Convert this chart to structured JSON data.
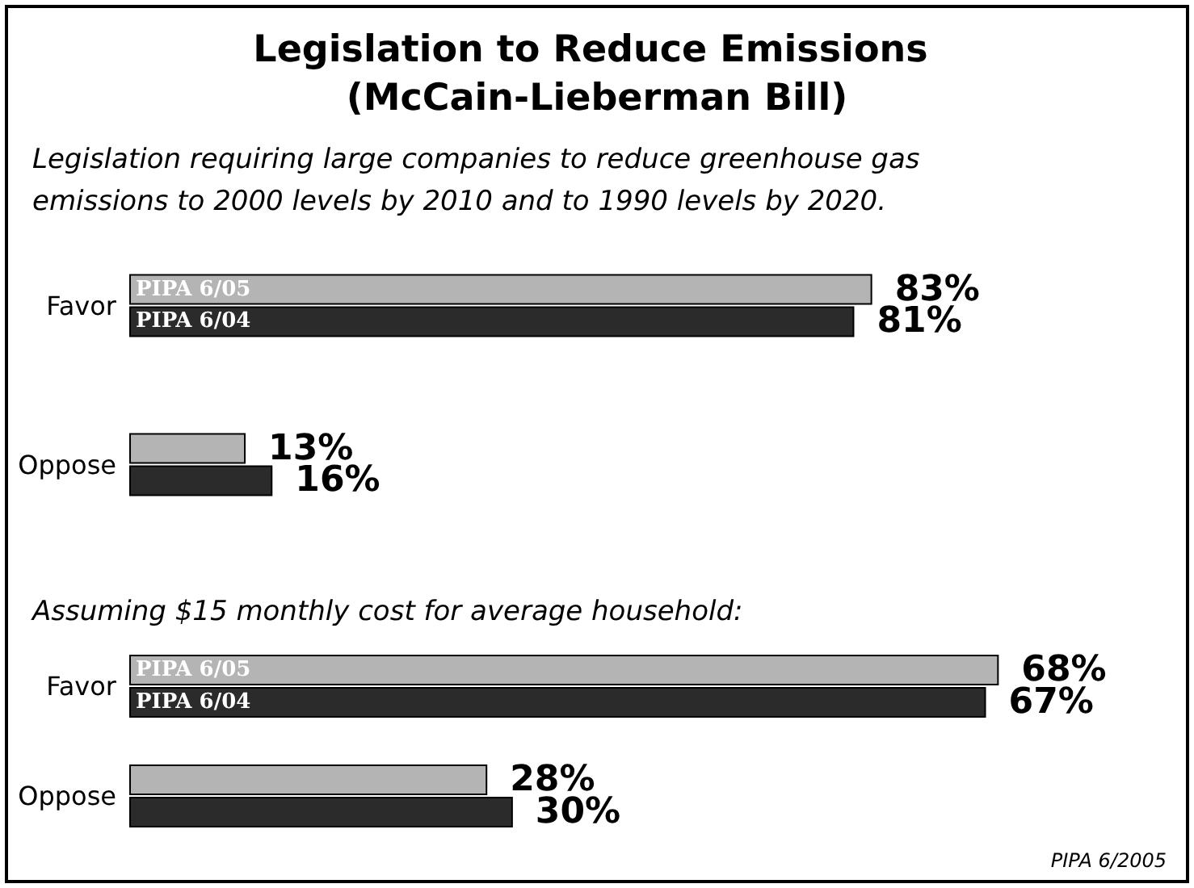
{
  "chart_data": [
    {
      "type": "bar",
      "title": "Legislation to Reduce Emissions (McCain-Lieberman Bill)",
      "subtitle": "Legislation requiring large companies to reduce greenhouse gas emissions to 2000 levels by 2010 and to 1990 levels by 2020.",
      "orientation": "horizontal",
      "categories": [
        "Favor",
        "Oppose"
      ],
      "legend": false,
      "series": [
        {
          "name": "PIPA 6/05",
          "color": "#b4b4b4",
          "values": [
            83,
            13
          ],
          "value_labels": [
            "83%",
            "13%"
          ]
        },
        {
          "name": "PIPA 6/04",
          "color": "#2b2b2b",
          "values": [
            81,
            16
          ],
          "value_labels": [
            "81%",
            "16%"
          ]
        }
      ]
    },
    {
      "type": "bar",
      "subtitle": "Assuming $15 monthly cost for average household:",
      "orientation": "horizontal",
      "categories": [
        "Favor",
        "Oppose"
      ],
      "legend": false,
      "annotations": [
        "PIPA 6/2005"
      ],
      "series": [
        {
          "name": "PIPA 6/05",
          "color": "#b4b4b4",
          "values": [
            68,
            28
          ],
          "value_labels": [
            "68%",
            "28%"
          ]
        },
        {
          "name": "PIPA 6/04",
          "color": "#2b2b2b",
          "values": [
            67,
            30
          ],
          "value_labels": [
            "67%",
            "30%"
          ]
        }
      ]
    }
  ]
}
